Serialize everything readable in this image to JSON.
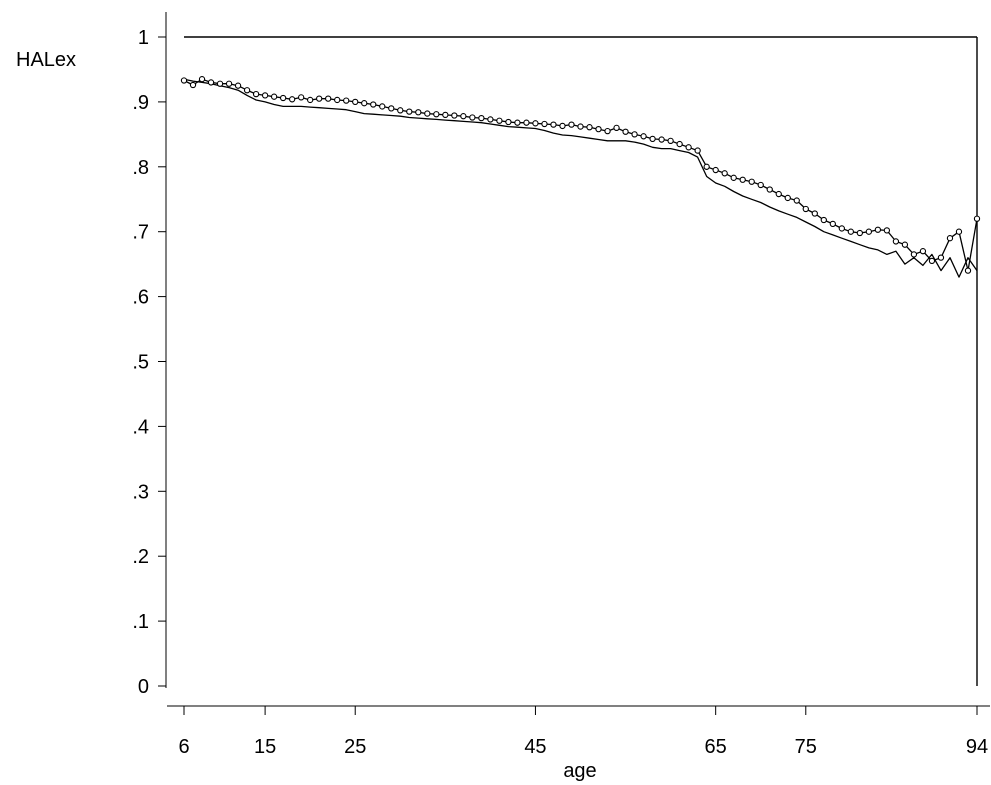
{
  "chart_data": {
    "type": "line",
    "ylabel": "HALex",
    "xlabel": "age",
    "xlim": [
      6,
      94
    ],
    "ylim": [
      0,
      1
    ],
    "x_ticks": [
      6,
      15,
      25,
      45,
      65,
      75,
      94
    ],
    "x_tick_labels": [
      "6",
      "15",
      "25",
      "45",
      "65",
      "75",
      "94"
    ],
    "y_ticks": [
      0,
      0.1,
      0.2,
      0.3,
      0.4,
      0.5,
      0.6,
      0.7,
      0.8,
      0.9,
      1
    ],
    "y_tick_labels": [
      "0",
      ".1",
      ".2",
      ".3",
      ".4",
      ".5",
      ".6",
      ".7",
      ".8",
      ".9",
      "1"
    ],
    "x": [
      6,
      7,
      8,
      9,
      10,
      11,
      12,
      13,
      14,
      15,
      16,
      17,
      18,
      19,
      20,
      21,
      22,
      23,
      24,
      25,
      26,
      27,
      28,
      29,
      30,
      31,
      32,
      33,
      34,
      35,
      36,
      37,
      38,
      39,
      40,
      41,
      42,
      43,
      44,
      45,
      46,
      47,
      48,
      49,
      50,
      51,
      52,
      53,
      54,
      55,
      56,
      57,
      58,
      59,
      60,
      61,
      62,
      63,
      64,
      65,
      66,
      67,
      68,
      69,
      70,
      71,
      72,
      73,
      74,
      75,
      76,
      77,
      78,
      79,
      80,
      81,
      82,
      83,
      84,
      85,
      86,
      87,
      88,
      89,
      90,
      91,
      92,
      93,
      94
    ],
    "series": [
      {
        "marker": "circle",
        "values": [
          0.933,
          0.926,
          0.935,
          0.93,
          0.928,
          0.928,
          0.925,
          0.918,
          0.912,
          0.91,
          0.908,
          0.906,
          0.904,
          0.907,
          0.903,
          0.905,
          0.905,
          0.903,
          0.902,
          0.9,
          0.898,
          0.896,
          0.893,
          0.89,
          0.887,
          0.885,
          0.884,
          0.882,
          0.881,
          0.88,
          0.879,
          0.878,
          0.876,
          0.875,
          0.873,
          0.871,
          0.869,
          0.868,
          0.868,
          0.867,
          0.866,
          0.865,
          0.863,
          0.865,
          0.862,
          0.861,
          0.858,
          0.855,
          0.86,
          0.854,
          0.85,
          0.847,
          0.843,
          0.842,
          0.84,
          0.835,
          0.83,
          0.825,
          0.8,
          0.795,
          0.79,
          0.783,
          0.78,
          0.777,
          0.772,
          0.765,
          0.758,
          0.752,
          0.748,
          0.735,
          0.728,
          0.718,
          0.712,
          0.705,
          0.7,
          0.698,
          0.7,
          0.703,
          0.702,
          0.685,
          0.68,
          0.665,
          0.67,
          0.655,
          0.66,
          0.69,
          0.7,
          0.64,
          0.72
        ]
      },
      {
        "marker": "none",
        "values": [
          0.935,
          0.932,
          0.93,
          0.928,
          0.925,
          0.922,
          0.918,
          0.91,
          0.903,
          0.9,
          0.896,
          0.893,
          0.893,
          0.893,
          0.892,
          0.891,
          0.89,
          0.889,
          0.888,
          0.885,
          0.882,
          0.881,
          0.88,
          0.879,
          0.878,
          0.876,
          0.875,
          0.874,
          0.873,
          0.872,
          0.871,
          0.87,
          0.869,
          0.868,
          0.866,
          0.864,
          0.862,
          0.861,
          0.86,
          0.859,
          0.856,
          0.852,
          0.849,
          0.848,
          0.846,
          0.844,
          0.842,
          0.84,
          0.84,
          0.84,
          0.838,
          0.835,
          0.83,
          0.828,
          0.828,
          0.825,
          0.822,
          0.815,
          0.785,
          0.775,
          0.77,
          0.762,
          0.755,
          0.75,
          0.745,
          0.738,
          0.732,
          0.727,
          0.722,
          0.715,
          0.708,
          0.7,
          0.695,
          0.69,
          0.685,
          0.68,
          0.675,
          0.672,
          0.665,
          0.67,
          0.65,
          0.66,
          0.648,
          0.665,
          0.64,
          0.66,
          0.63,
          0.66,
          0.64
        ]
      }
    ],
    "reference_lines": [
      {
        "orientation": "horizontal",
        "y": 1,
        "from_x": 6,
        "to_x": 94
      },
      {
        "orientation": "vertical",
        "x": 94,
        "from_y": 0,
        "to_y": 1
      }
    ],
    "grid": false,
    "legend": false,
    "colors": {
      "line": "#000000",
      "marker_fill": "#ffffff",
      "background": "#ffffff"
    }
  }
}
